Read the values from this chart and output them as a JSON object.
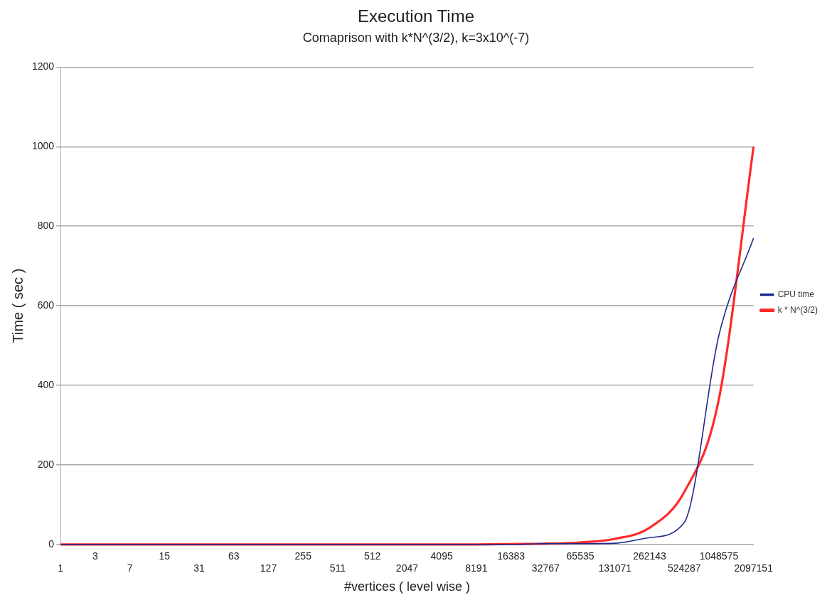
{
  "chart_data": {
    "type": "line",
    "title": "Execution Time",
    "subtitle": "Comaprison with k*N^(3/2), k=3x10^(-7)",
    "xlabel": "#vertices ( level wise )",
    "ylabel": "Time ( sec )",
    "categories": [
      "1",
      "3",
      "7",
      "15",
      "31",
      "63",
      "127",
      "255",
      "511",
      "512",
      "2047",
      "4095",
      "8191",
      "16383",
      "32767",
      "65535",
      "131071",
      "262143",
      "524287",
      "1048575",
      "2097151"
    ],
    "series": [
      {
        "name": "CPU time",
        "color": "#1f2a8a",
        "values": [
          0,
          0,
          0,
          0,
          0,
          0,
          0,
          0,
          0,
          0,
          0,
          0,
          0,
          0,
          2,
          2,
          3,
          17,
          55,
          526,
          770
        ]
      },
      {
        "name": "k * N^(3/2)",
        "color": "#ff2a2a",
        "values": [
          0,
          0,
          0,
          0,
          0,
          0,
          0,
          0,
          0,
          0,
          0,
          0,
          0,
          1,
          2,
          5,
          14,
          42,
          132,
          366,
          1000
        ]
      }
    ],
    "ylim": [
      0,
      1200
    ],
    "yticks": [
      0,
      200,
      400,
      600,
      800,
      1000,
      1200
    ],
    "grid": "y",
    "legend": "right",
    "marker": "none",
    "line_style": "solid"
  }
}
